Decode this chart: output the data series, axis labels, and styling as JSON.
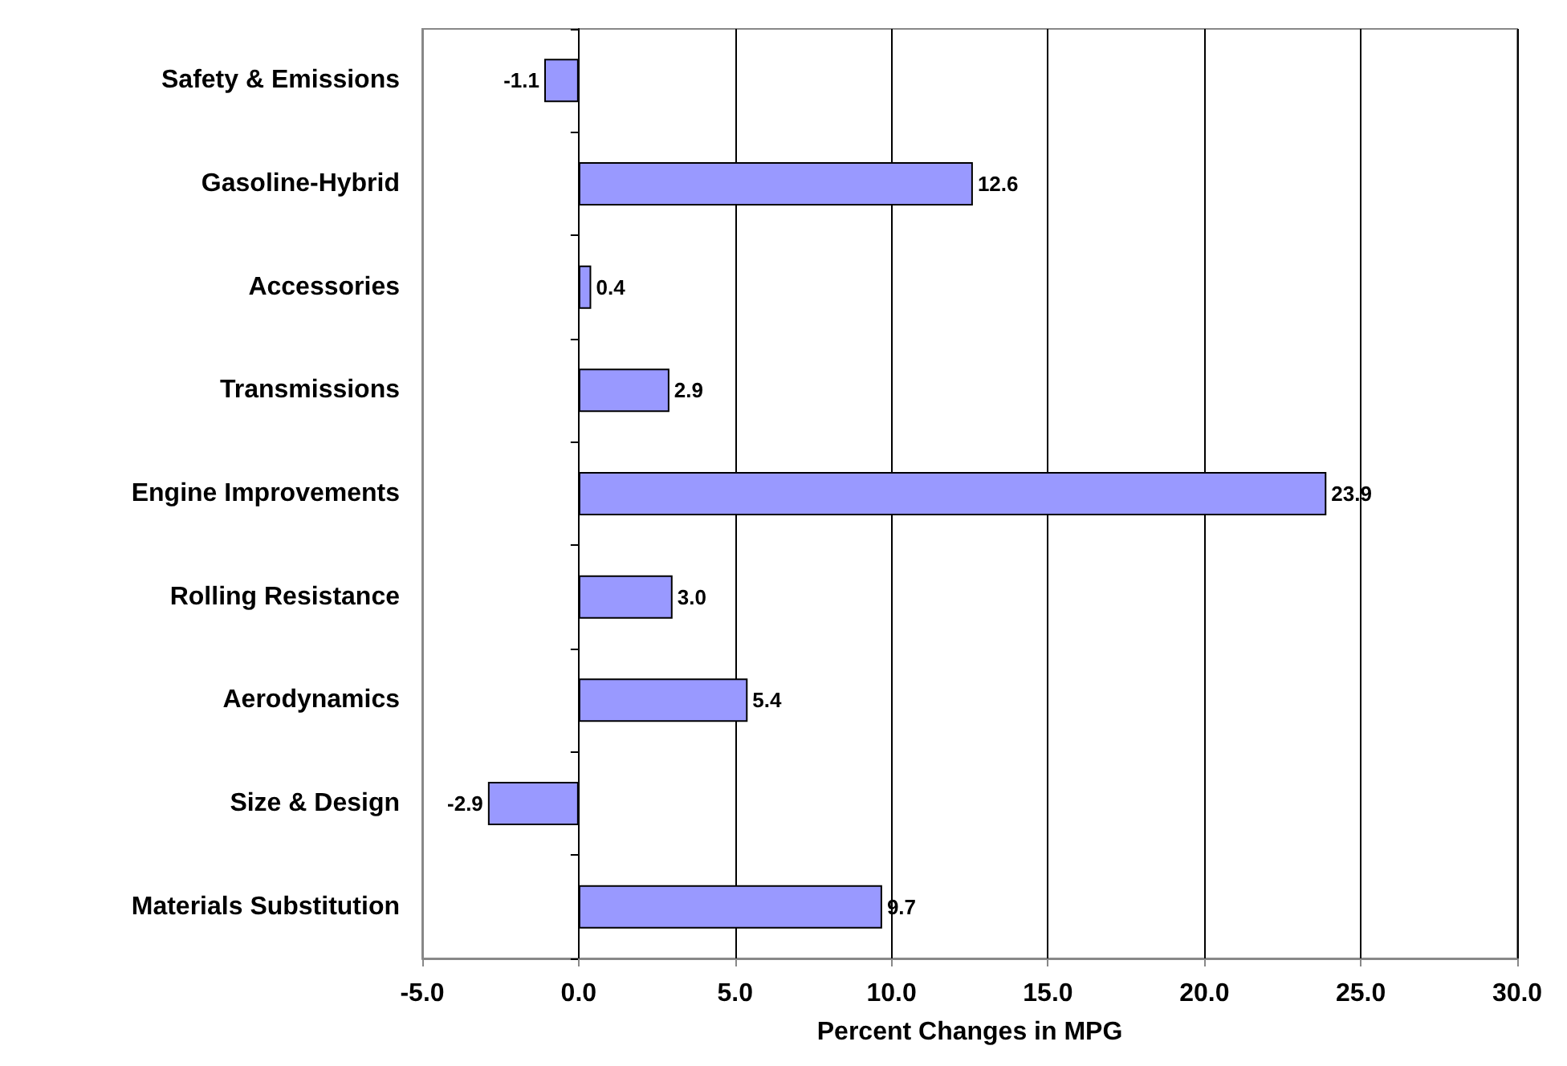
{
  "chart_data": {
    "type": "bar",
    "orientation": "horizontal",
    "xlabel": "Percent Changes in MPG",
    "categories": [
      "Safety & Emissions",
      "Gasoline-Hybrid",
      "Accessories",
      "Transmissions",
      "Engine Improvements",
      "Rolling Resistance",
      "Aerodynamics",
      "Size & Design",
      "Materials Substitution"
    ],
    "values": [
      -1.1,
      12.6,
      0.4,
      2.9,
      23.9,
      3.0,
      5.4,
      -2.9,
      9.7
    ],
    "value_labels": [
      "-1.1",
      "12.6",
      "0.4",
      "2.9",
      "23.9",
      "3.0",
      "5.4",
      "-2.9",
      "9.7"
    ],
    "color": "#9999ff",
    "xlim": [
      -5,
      30
    ],
    "xticks": [
      {
        "value": -5,
        "label": "-5.0"
      },
      {
        "value": 0,
        "label": "0.0"
      },
      {
        "value": 5,
        "label": "5.0"
      },
      {
        "value": 10,
        "label": "10.0"
      },
      {
        "value": 15,
        "label": "15.0"
      },
      {
        "value": 20,
        "label": "20.0"
      },
      {
        "value": 25,
        "label": "25.0"
      },
      {
        "value": 30,
        "label": "30.0"
      }
    ],
    "grid": "x"
  }
}
